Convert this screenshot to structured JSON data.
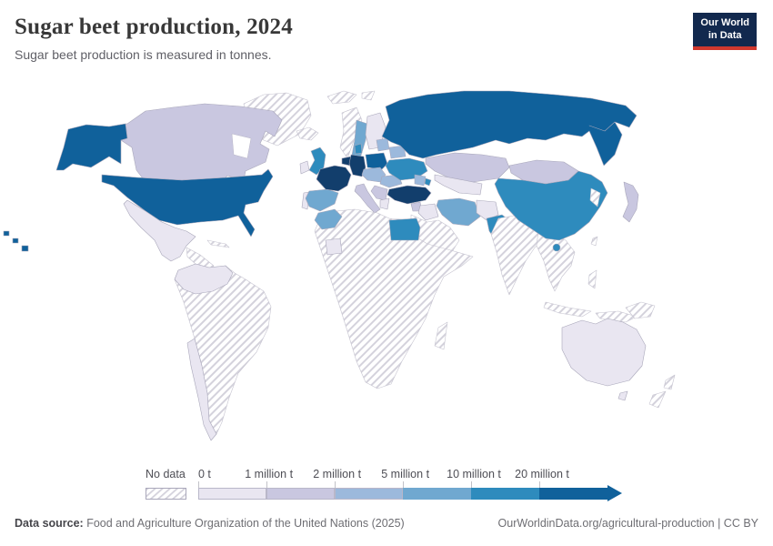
{
  "header": {
    "title": "Sugar beet production, 2024",
    "subtitle": "Sugar beet production is measured in tonnes.",
    "logo": {
      "line1": "Our World",
      "line2": "in Data",
      "bg_color": "#12294e",
      "accent_color": "#d0382e"
    }
  },
  "legend": {
    "no_data_label": "No data",
    "bins": [
      {
        "label": "0 t",
        "color": "#e9e6f1",
        "light": true
      },
      {
        "label": "1 million t",
        "color": "#c9c7e0",
        "light": true
      },
      {
        "label": "2 million t",
        "color": "#9cb9dc",
        "light": true
      },
      {
        "label": "5 million t",
        "color": "#70a8d0",
        "light": false
      },
      {
        "label": "10 million t",
        "color": "#2e8bbd",
        "light": false
      },
      {
        "label": "20 million t",
        "color": "#10619b",
        "light": false
      }
    ],
    "arrow_color": "#10619b"
  },
  "footer": {
    "source_label": "Data source:",
    "source_text": " Food and Agriculture Organization of the United Nations (2025)",
    "attribution": "OurWorldinData.org/agricultural-production | CC BY"
  },
  "chart_data": {
    "type": "choropleth",
    "title": "Sugar beet production, 2024",
    "unit": "tonnes",
    "legend_position": "bottom",
    "legend_bins": [
      "No data",
      "0 t",
      "1 million t",
      "2 million t",
      "5 million t",
      "10 million t",
      "20 million t"
    ],
    "palette": {
      "bin0": "#e9e6f1",
      "bin1": "#c9c7e0",
      "bin2": "#9cb9dc",
      "bin3": "#70a8d0",
      "bin4": "#2e8bbd",
      "bin5": "#10619b",
      "bin5_dark": "#123e6c",
      "no-data": "hatched"
    },
    "countries": {
      "alaska": "bin5",
      "hawaii": "bin5",
      "united-states": "bin5",
      "canada": "bin1",
      "greenland": "no-data",
      "mexico": "bin0",
      "central-america": "no-data",
      "cuba": "no-data",
      "colombia-venezuela-ecuador": "bin0",
      "south-america": "no-data",
      "chile": "bin0",
      "iceland": "no-data",
      "norway": "no-data",
      "svalbard": "no-data",
      "sweden": "bin3",
      "finland": "bin0",
      "ireland": "bin0",
      "united-kingdom": "bin4",
      "portugal": "bin0",
      "spain": "bin3",
      "france": "bin5_dark",
      "benelux": "bin5_dark",
      "germany": "bin5_dark",
      "denmark": "bin4",
      "poland": "bin5",
      "czech-austria-hungary": "bin2",
      "italy": "bin1",
      "balkans": "bin1",
      "greece": "bin0",
      "romania": "bin2",
      "baltic-states": "bin2",
      "belarus": "bin2",
      "ukraine": "bin4",
      "russia": "bin5",
      "kazakhstan": "bin1",
      "central-asia": "bin0",
      "caucasus": "bin2",
      "azerbaijan": "bin4",
      "turkey": "bin5_dark",
      "syria": "bin1",
      "iraq": "bin0",
      "iran": "bin3",
      "afghanistan": "bin0",
      "pakistan": "bin4",
      "middle-east": "no-data",
      "india": "no-data",
      "southeast-asia": "no-data",
      "indonesia-west": "no-data",
      "indonesia-east": "no-data",
      "philippines": "no-data",
      "mongolia": "bin1",
      "china": "bin4",
      "hainan": "bin4",
      "korea": "no-data",
      "japan": "bin1",
      "taiwan": "no-data",
      "africa": "no-data",
      "madagascar": "no-data",
      "egypt": "bin4",
      "morocco": "bin3",
      "mali": "bin0",
      "papua-new-guinea": "no-data",
      "australia": "bin0",
      "tasmania": "bin0",
      "new-zealand-north": "no-data",
      "new-zealand-south": "no-data"
    }
  }
}
